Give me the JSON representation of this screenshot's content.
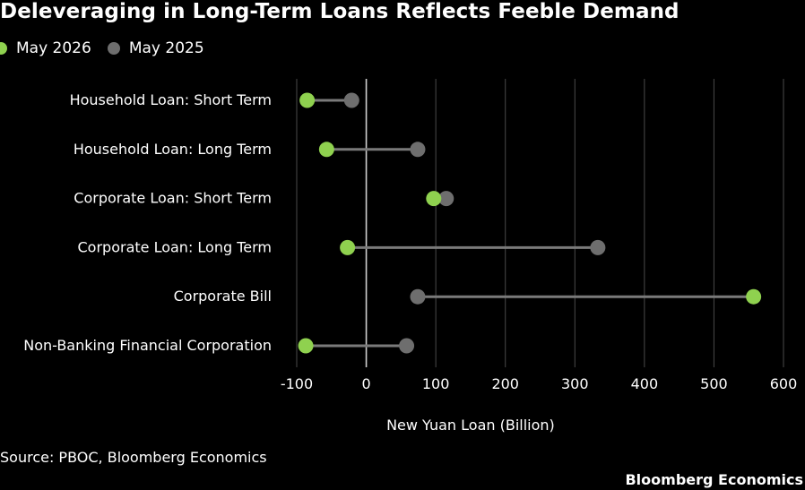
{
  "title": "Deleveraging in Long-Term Loans Reflects Feeble Demand",
  "source": "Source: PBOC, Bloomberg Economics",
  "brand": "Bloomberg Economics",
  "colors": {
    "may2026": "#8fd14f",
    "may2025": "#6e6e6e",
    "connector": "#7a7a7a",
    "background": "#000000"
  },
  "chart_data": {
    "type": "dumbbell",
    "title": "Deleveraging in Long-Term Loans Reflects Feeble Demand",
    "xlabel": "New Yuan Loan (Billion)",
    "ylabel": "",
    "xlim": [
      -100,
      600
    ],
    "xticks": [
      -100,
      0,
      100,
      200,
      300,
      400,
      500,
      600
    ],
    "grid": true,
    "legend_position": "top-left",
    "categories": [
      "Household Loan: Short Term",
      "Household Loan: Long Term",
      "Corporate Loan: Short Term",
      "Corporate Loan: Long Term",
      "Corporate Bill",
      "Non-Banking Financial Corporation"
    ],
    "series": [
      {
        "name": "May 2026",
        "color": "#8fd14f",
        "values": [
          -85,
          -57,
          97,
          -27,
          557,
          -87
        ]
      },
      {
        "name": "May 2025",
        "color": "#6e6e6e",
        "values": [
          -21,
          74,
          115,
          333,
          74,
          58
        ]
      }
    ]
  }
}
